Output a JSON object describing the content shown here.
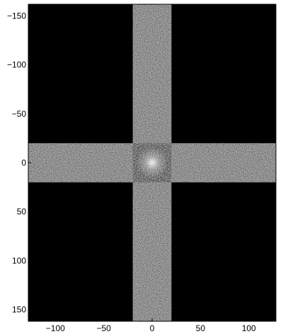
{
  "chart_data": {
    "type": "heatmap",
    "title": "",
    "xlabel": "",
    "ylabel": "",
    "xlim": [
      -128,
      128
    ],
    "ylim": [
      -162,
      162
    ],
    "y_reversed": true,
    "grid": false,
    "colormap": "gray",
    "background_value": 0,
    "x_ticks": [
      -100,
      -50,
      0,
      50,
      100
    ],
    "x_tick_labels": [
      "−100",
      "−50",
      "0",
      "50",
      "100"
    ],
    "y_ticks": [
      -150,
      -100,
      -50,
      0,
      50,
      100,
      150
    ],
    "y_tick_labels": [
      "−150",
      "−100",
      "−50",
      "0",
      "50",
      "100",
      "150"
    ],
    "nonzero_regions": [
      {
        "name": "vertical band",
        "x_range": [
          -20,
          20
        ],
        "y_range": [
          -162,
          162
        ]
      },
      {
        "name": "horizontal band",
        "x_range": [
          -128,
          128
        ],
        "y_range": [
          -20,
          20
        ]
      }
    ],
    "peak": {
      "x": 0,
      "y": 0
    }
  }
}
